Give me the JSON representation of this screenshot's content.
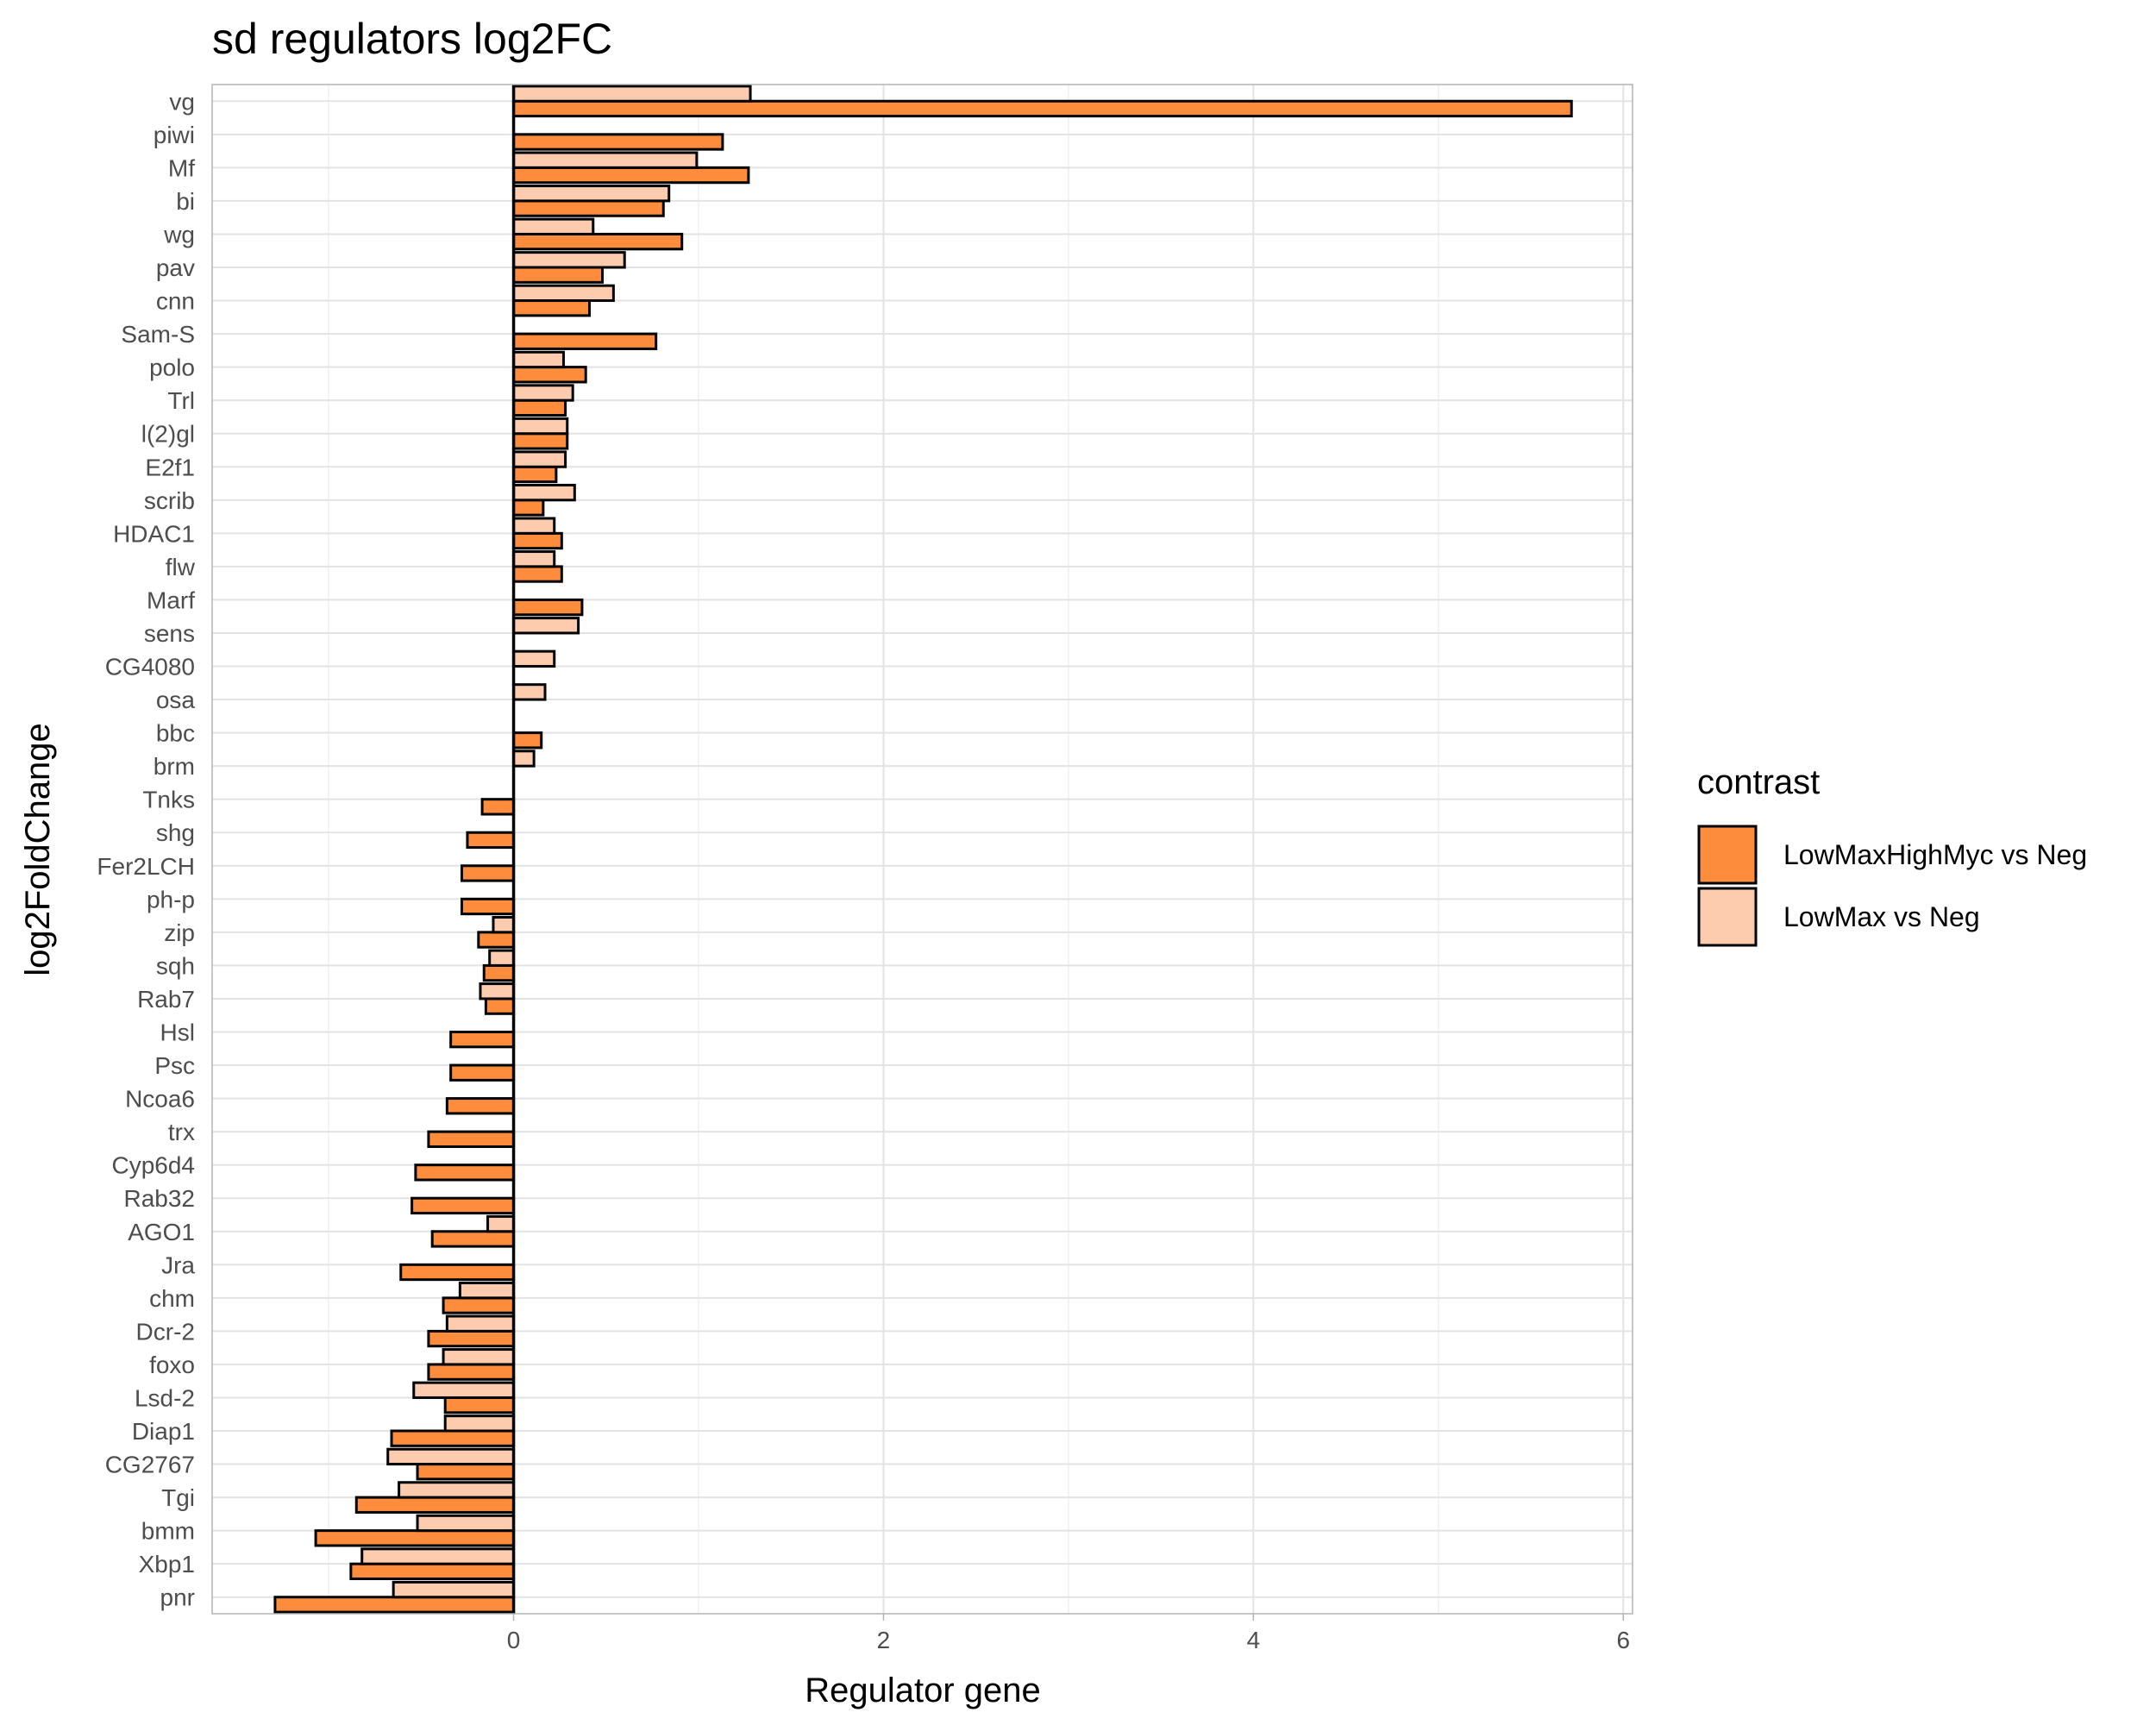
{
  "chart_data": {
    "type": "bar",
    "orientation": "horizontal",
    "title": "sd regulators log2FC",
    "xlabel": "Regulator gene",
    "ylabel": "log2FoldChange",
    "xlim": [
      -1.63,
      6.05
    ],
    "x_ticks": [
      0,
      2,
      4,
      6
    ],
    "grid": true,
    "legend_position": "right",
    "legend_title": "contrast",
    "categories": [
      "vg",
      "piwi",
      "Mf",
      "bi",
      "wg",
      "pav",
      "cnn",
      "Sam-S",
      "polo",
      "Trl",
      "l(2)gl",
      "E2f1",
      "scrib",
      "HDAC1",
      "flw",
      "Marf",
      "sens",
      "CG4080",
      "osa",
      "bbc",
      "brm",
      "Tnks",
      "shg",
      "Fer2LCH",
      "ph-p",
      "zip",
      "sqh",
      "Rab7",
      "Hsl",
      "Psc",
      "Ncoa6",
      "trx",
      "Cyp6d4",
      "Rab32",
      "AGO1",
      "Jra",
      "chm",
      "Dcr-2",
      "foxo",
      "Lsd-2",
      "Diap1",
      "CG2767",
      "Tgi",
      "bmm",
      "Xbp1",
      "pnr"
    ],
    "series": [
      {
        "name": "LowMaxHighMyc vs Neg",
        "color": "#fd8d3c",
        "values": [
          5.72,
          1.13,
          1.27,
          0.81,
          0.91,
          0.48,
          0.41,
          0.77,
          0.39,
          0.28,
          0.29,
          0.23,
          0.16,
          0.26,
          0.26,
          0.37,
          null,
          null,
          null,
          0.15,
          null,
          -0.17,
          -0.25,
          -0.28,
          -0.28,
          -0.19,
          -0.16,
          -0.15,
          -0.34,
          -0.34,
          -0.36,
          -0.46,
          -0.53,
          -0.55,
          -0.44,
          -0.61,
          -0.38,
          -0.46,
          -0.46,
          -0.37,
          -0.66,
          -0.52,
          -0.85,
          -1.07,
          -0.88,
          -1.29
        ]
      },
      {
        "name": "LowMax vs Neg",
        "color": "#fdcbae",
        "values": [
          1.28,
          null,
          0.99,
          0.84,
          0.43,
          0.6,
          0.54,
          null,
          0.27,
          0.32,
          0.29,
          0.28,
          0.33,
          0.22,
          0.22,
          null,
          0.35,
          0.22,
          0.17,
          null,
          0.11,
          null,
          null,
          null,
          null,
          -0.11,
          -0.13,
          -0.18,
          null,
          null,
          null,
          null,
          null,
          null,
          -0.14,
          null,
          -0.29,
          -0.36,
          -0.38,
          -0.54,
          -0.37,
          -0.68,
          -0.62,
          -0.52,
          -0.82,
          -0.65
        ]
      }
    ]
  }
}
